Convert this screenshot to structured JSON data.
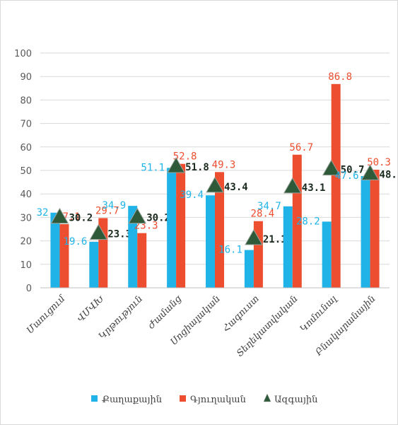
{
  "chart_data": {
    "type": "bar",
    "categories": [
      "Մաուցում",
      "ՎՄՎԽ",
      "Կրթություն",
      "Ժամանց",
      "Սոցիալական",
      "Հագուստ",
      "Տեղեկատվական",
      "Կոմունալ",
      "Բնակարանային"
    ],
    "series": [
      {
        "name": "Քաղաքային",
        "kind": "bar",
        "color": "#1fb3e8",
        "values": [
          32,
          19.6,
          34.9,
          51.1,
          39.4,
          16.1,
          34.7,
          28.2,
          47.6
        ]
      },
      {
        "name": "Գյուղական",
        "kind": "bar",
        "color": "#ec4e2f",
        "values": [
          27.1,
          29.7,
          23.3,
          52.8,
          49.3,
          28.4,
          56.7,
          86.8,
          50.3
        ]
      },
      {
        "name": "Ազգային",
        "kind": "marker",
        "color": "#2f5a3a",
        "values": [
          30.2,
          23.3,
          30.2,
          51.8,
          43.4,
          21.1,
          43.1,
          50.7,
          48.7
        ]
      }
    ],
    "data_labels": {
      "Քաղաքային": [
        "32",
        "19.6",
        "34.9",
        "51.1",
        "39.4",
        "16.1",
        "34.7",
        "28.2",
        "47.6"
      ],
      "Գյուղական": [
        "27.1",
        "29.7",
        "23.3",
        "52.8",
        "49.3",
        "28.4",
        "56.7",
        "86.8",
        "50.3"
      ],
      "Ազգային": [
        "30.2",
        "23.3",
        "30.2",
        "51.8",
        "43.4",
        "21.1",
        "43.1",
        "50.7",
        "48.7"
      ]
    },
    "yticks": [
      "0",
      "10",
      "20",
      "30",
      "40",
      "50",
      "60",
      "70",
      "80",
      "90",
      "100"
    ],
    "ylim": [
      0,
      100
    ],
    "grid": true,
    "legend_position": "bottom",
    "title": "",
    "xlabel": "",
    "ylabel": ""
  }
}
